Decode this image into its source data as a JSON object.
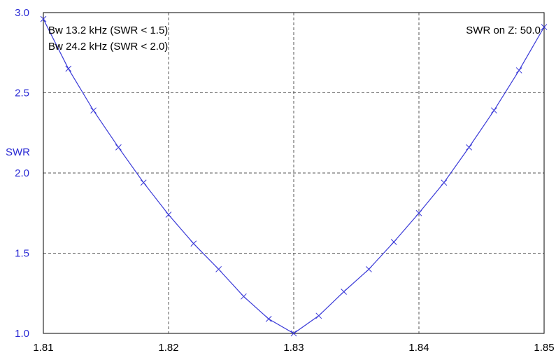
{
  "chart_data": {
    "type": "line",
    "title": "",
    "xlabel": "",
    "ylabel": "SWR",
    "xlim": [
      1.81,
      1.85
    ],
    "ylim": [
      1.0,
      3.0
    ],
    "x_ticks": [
      "1.81",
      "1.82",
      "1.83",
      "1.84",
      "1.85"
    ],
    "y_ticks": [
      "1.0",
      "1.5",
      "2.0",
      "2.5",
      "3.0"
    ],
    "grid": true,
    "annotations": {
      "bw1": "Bw 13.2 kHz (SWR < 1.5)",
      "bw2": "Bw 24.2 kHz (SWR < 2.0)",
      "impedance": "SWR on Z: 50.0"
    },
    "series": [
      {
        "x": [
          1.81,
          1.812,
          1.814,
          1.816,
          1.818,
          1.82,
          1.822,
          1.824,
          1.826,
          1.828,
          1.83,
          1.832,
          1.834,
          1.836,
          1.838,
          1.84,
          1.842,
          1.844,
          1.846,
          1.848,
          1.85
        ],
        "values": [
          2.96,
          2.65,
          2.39,
          2.16,
          1.94,
          1.74,
          1.56,
          1.4,
          1.23,
          1.09,
          1.0,
          1.11,
          1.26,
          1.4,
          1.57,
          1.75,
          1.94,
          2.16,
          2.39,
          2.64,
          2.91
        ]
      }
    ]
  },
  "colors": {
    "line": "#3a3ad8",
    "axis_text": "#2a2ad4",
    "grid": "#555555",
    "frame": "#000000",
    "background": "#ffffff"
  }
}
